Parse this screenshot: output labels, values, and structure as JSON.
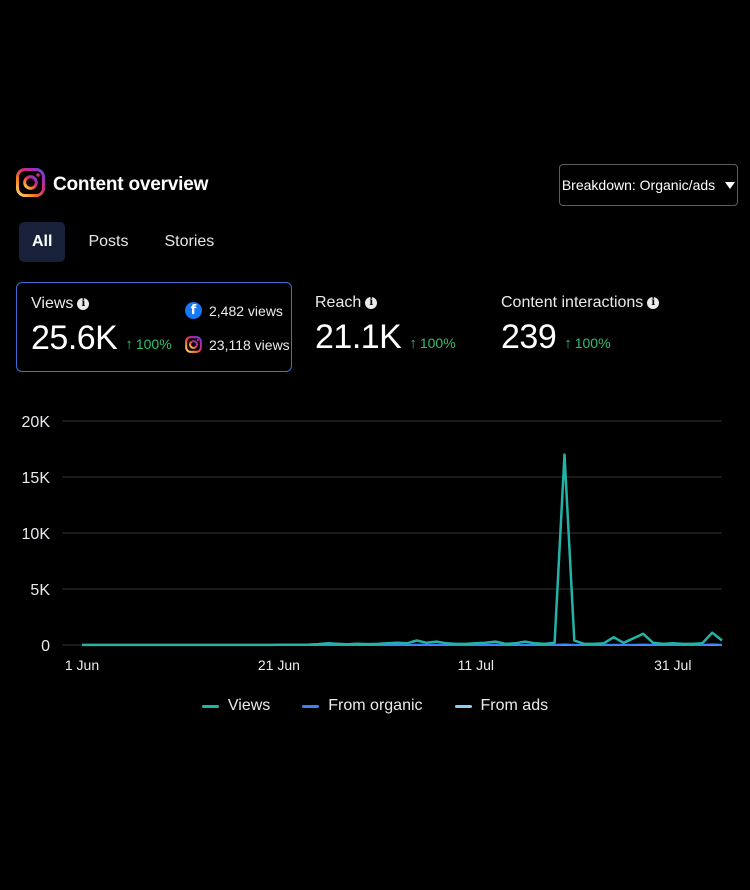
{
  "header": {
    "title": "Content overview",
    "logo_icon": "instagram-icon",
    "breakdown_label": "Breakdown: Organic/ads"
  },
  "tabs": [
    {
      "label": "All",
      "active": true
    },
    {
      "label": "Posts",
      "active": false
    },
    {
      "label": "Stories",
      "active": false
    }
  ],
  "metrics": {
    "views": {
      "label": "Views",
      "value": "25.6K",
      "change": "100%",
      "facebook": "2,482 views",
      "instagram": "23,118 views"
    },
    "reach": {
      "label": "Reach",
      "value": "21.1K",
      "change": "100%"
    },
    "interactions": {
      "label": "Content interactions",
      "value": "239",
      "change": "100%"
    }
  },
  "colors": {
    "views": "#22b3a6",
    "organic": "#3b82f6",
    "ads": "#8ecbf5",
    "positive": "#2fbf71",
    "selected_border": "#3e6fd6"
  },
  "chart_data": {
    "type": "line",
    "x_start": "1 Jun",
    "x_end": "6 Aug",
    "x_tick_labels": [
      "1 Jun",
      "21 Jun",
      "11 Jul",
      "31 Jul"
    ],
    "y_tick_labels": [
      "20K",
      "15K",
      "10K",
      "5K",
      "0"
    ],
    "ylim": [
      0,
      20000
    ],
    "grid": true,
    "legend_position": "bottom",
    "series": [
      {
        "name": "Views",
        "values": [
          10,
          10,
          10,
          10,
          10,
          10,
          10,
          10,
          10,
          10,
          10,
          10,
          10,
          10,
          10,
          10,
          10,
          10,
          10,
          10,
          20,
          20,
          30,
          40,
          80,
          150,
          100,
          60,
          120,
          80,
          100,
          150,
          200,
          150,
          400,
          200,
          300,
          150,
          100,
          100,
          150,
          200,
          300,
          100,
          150,
          300,
          150,
          100,
          200,
          17000,
          400,
          100,
          100,
          150,
          700,
          200,
          600,
          1000,
          200,
          100,
          150,
          100,
          100,
          150,
          1100,
          400
        ],
        "color": "#22b3a6"
      },
      {
        "name": "From organic",
        "values": [
          0,
          0,
          0,
          0,
          0,
          0,
          0,
          0,
          0,
          0,
          0,
          0,
          0,
          0,
          0,
          0,
          0,
          0,
          0,
          0,
          0,
          0,
          0,
          0,
          5,
          10,
          10,
          5,
          10,
          10,
          10,
          10,
          15,
          10,
          30,
          15,
          20,
          10,
          10,
          10,
          10,
          15,
          20,
          10,
          10,
          20,
          10,
          10,
          15,
          60,
          20,
          10,
          10,
          10,
          40,
          15,
          30,
          50,
          15,
          10,
          10,
          10,
          10,
          10,
          60,
          30
        ],
        "color": "#3b82f6"
      },
      {
        "name": "From ads",
        "values": [
          0,
          0,
          0,
          0,
          0,
          0,
          0,
          0,
          0,
          0,
          0,
          0,
          0,
          0,
          0,
          0,
          0,
          0,
          0,
          0,
          0,
          0,
          0,
          0,
          0,
          0,
          0,
          0,
          0,
          0,
          0,
          0,
          0,
          0,
          0,
          0,
          0,
          0,
          0,
          0,
          0,
          0,
          0,
          0,
          0,
          0,
          0,
          0,
          0,
          0,
          0,
          0,
          0,
          0,
          0,
          0,
          0,
          0,
          0,
          0,
          0,
          0,
          0,
          0,
          0,
          0
        ],
        "color": "#8ecbf5"
      }
    ]
  }
}
